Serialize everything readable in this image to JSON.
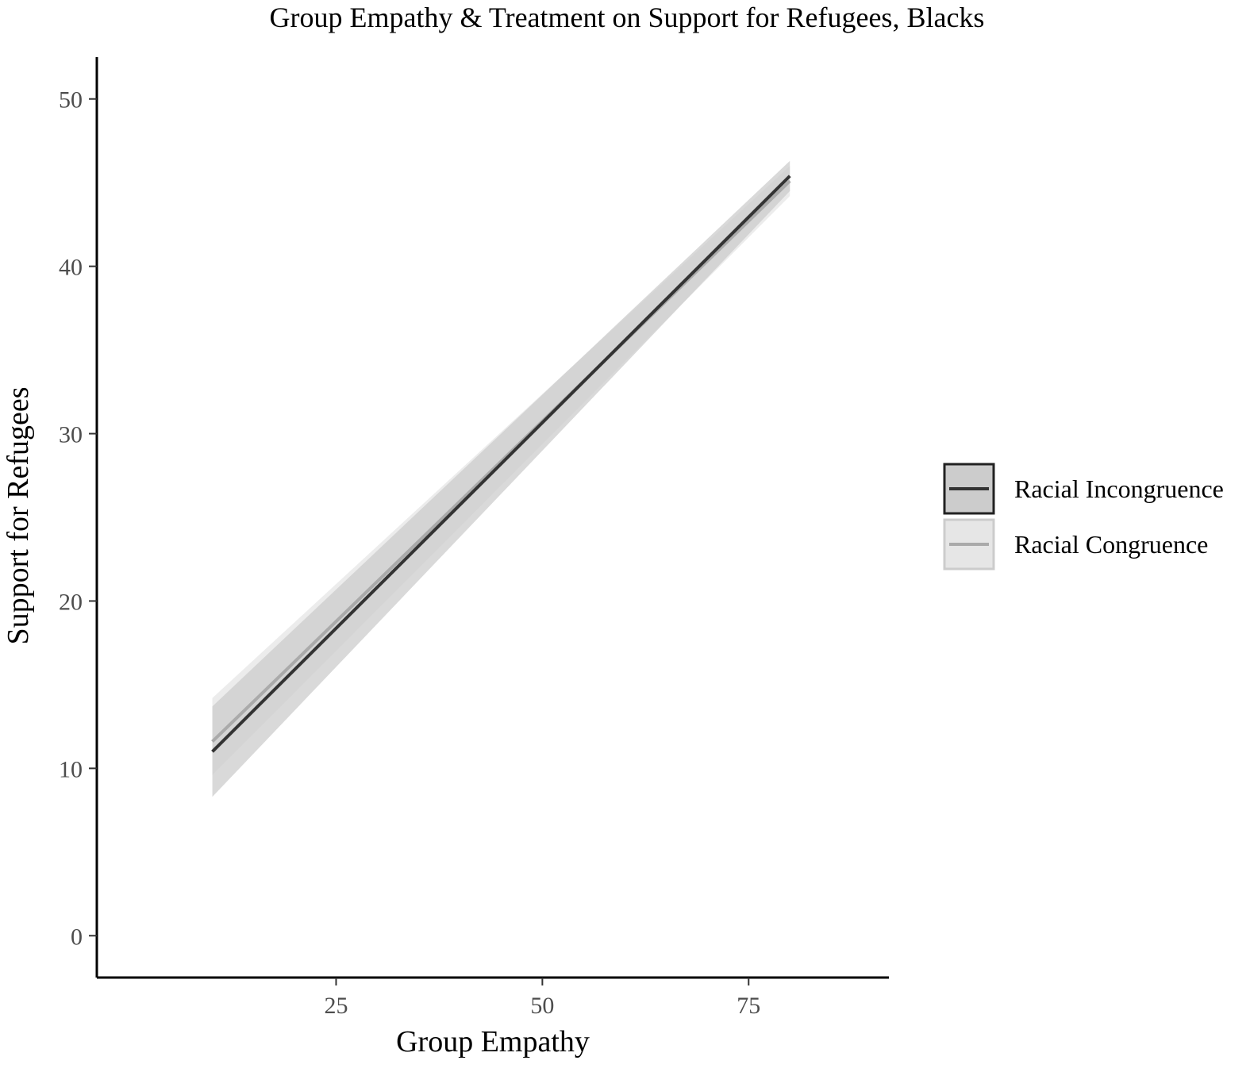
{
  "chart_data": {
    "type": "line",
    "title": "Group Empathy & Treatment on Support for Refugees, Blacks",
    "xlabel": "Group Empathy",
    "ylabel": "Support for Refugees",
    "xlim": [
      -4,
      92
    ],
    "ylim": [
      -2.5,
      52.5
    ],
    "x_ticks": [
      25,
      50,
      75
    ],
    "y_ticks": [
      0,
      10,
      20,
      30,
      40,
      50
    ],
    "grid": false,
    "legend": {
      "placement": "right"
    },
    "series": [
      {
        "name": "Racial Incongruence",
        "color": "#333333",
        "band_color": "#cccccc",
        "x": [
          10,
          80
        ],
        "y": [
          11.0,
          45.4
        ],
        "ci_lower": [
          8.3,
          44.5
        ],
        "ci_upper": [
          13.7,
          46.3
        ]
      },
      {
        "name": "Racial Congruence",
        "color": "#aaaaaa",
        "band_color": "#e6e6e6",
        "x": [
          10,
          80
        ],
        "y": [
          11.6,
          45.1
        ],
        "ci_lower": [
          9.6,
          44.2
        ],
        "ci_upper": [
          14.2,
          46.0
        ]
      }
    ]
  }
}
